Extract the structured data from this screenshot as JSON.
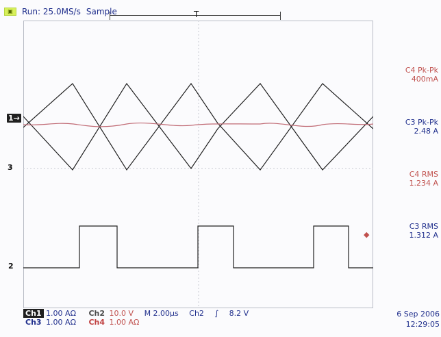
{
  "header": {
    "trigger_icon": "trigger-status-icon",
    "run_text": "Run: 25.0MS/s",
    "mode_text": "Sample",
    "buffer_center": "T"
  },
  "measurements": [
    {
      "label": "C4 Pk-Pk",
      "value": "400mA",
      "color": "#c0504d"
    },
    {
      "label": "C3 Pk-Pk",
      "value": "2.48 A",
      "color": "#1f2e8c"
    },
    {
      "label": "C4 RMS",
      "value": "1.234 A",
      "color": "#c0504d"
    },
    {
      "label": "C3 RMS",
      "value": "1.312 A",
      "color": "#1f2e8c"
    }
  ],
  "scales": {
    "row1": {
      "ch1": "Ch1",
      "ch1_val": "1.00 AΩ",
      "ch2": "Ch2",
      "ch2_val": "10.0 V",
      "timebase": "M 2.00μs",
      "trig_src": "Ch2",
      "trig_slope": "∫",
      "trig_level": "8.2 V"
    },
    "row2": {
      "ch3": "Ch3",
      "ch3_val": "1.00 AΩ",
      "ch4": "Ch4",
      "ch4_val": "1.00 AΩ"
    }
  },
  "datetime": {
    "date": "6 Sep 2006",
    "time": "12:29:05"
  },
  "channel_markers": {
    "one": "1",
    "two": "2",
    "three": "3",
    "arrow": "→"
  },
  "colors": {
    "background": "#fbfbfd",
    "grid": "#b8bcc5",
    "wave_dark": "#202020",
    "wave_red": "#c06a74",
    "blue": "#1f2e8c"
  }
}
